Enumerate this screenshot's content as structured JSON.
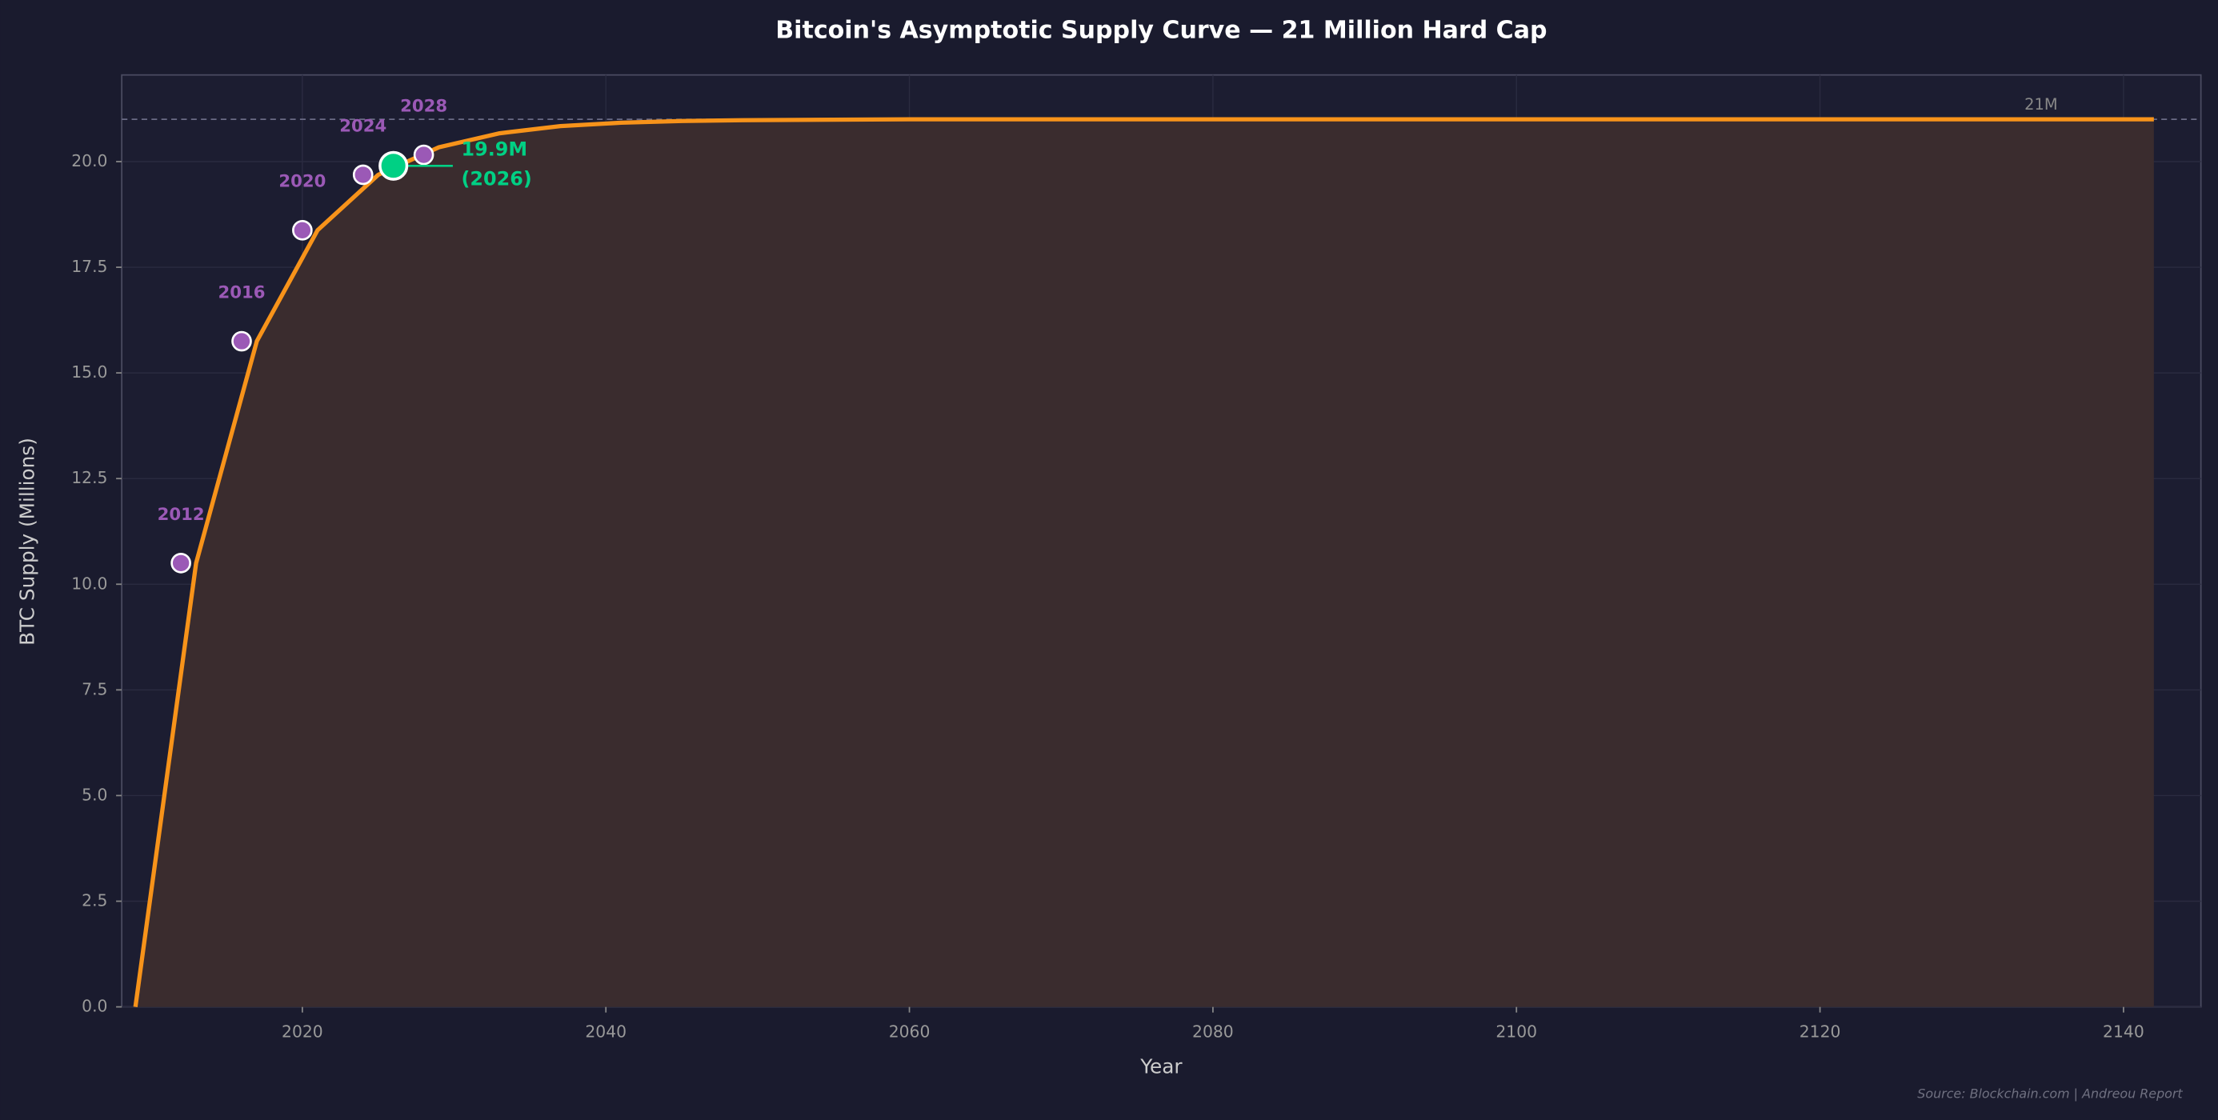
{
  "chart_data": {
    "type": "line",
    "title": "Bitcoin's Asymptotic Supply Curve — 21 Million Hard Cap",
    "xlabel": "Year",
    "ylabel": "BTC Supply (Millions)",
    "x": [
      2009,
      2013,
      2017,
      2021,
      2025,
      2029,
      2033,
      2037,
      2041,
      2045,
      2049,
      2060,
      2100,
      2142
    ],
    "values": [
      0,
      10.5,
      15.75,
      18.375,
      19.6875,
      20.34,
      20.67,
      20.84,
      20.92,
      20.96,
      20.98,
      21.0,
      21.0,
      21.0
    ],
    "color": "#f7931a",
    "fill_color": "#3a2c2e",
    "halvings": {
      "x": [
        2012,
        2016,
        2020,
        2024,
        2028
      ],
      "values": [
        10.5,
        15.75,
        18.375,
        19.6875,
        20.16
      ],
      "labels": [
        "2012",
        "2016",
        "2020",
        "2024",
        "2028"
      ],
      "color": "#9b59b6"
    },
    "current": {
      "x": 2026,
      "value": 19.9,
      "label": [
        "19.9M",
        "(2026)"
      ],
      "color": "#00d084"
    },
    "cap": {
      "value": 21,
      "label": "21M"
    },
    "source": "Source: Blockchain.com  |  Andreou Report",
    "xlim": [
      2008.1,
      2145.1
    ],
    "ylim": [
      0,
      22.05
    ],
    "xticks": [
      2020,
      2040,
      2060,
      2080,
      2100,
      2120,
      2140
    ],
    "yticks": [
      {
        "value": 0,
        "label": "0.0"
      },
      {
        "value": 2.5,
        "label": "2.5"
      },
      {
        "value": 5,
        "label": "5.0"
      },
      {
        "value": 7.5,
        "label": "7.5"
      },
      {
        "value": 10,
        "label": "10.0"
      },
      {
        "value": 12.5,
        "label": "12.5"
      },
      {
        "value": 15,
        "label": "15.0"
      },
      {
        "value": 17.5,
        "label": "17.5"
      },
      {
        "value": 20,
        "label": "20.0"
      }
    ],
    "grid": true
  }
}
